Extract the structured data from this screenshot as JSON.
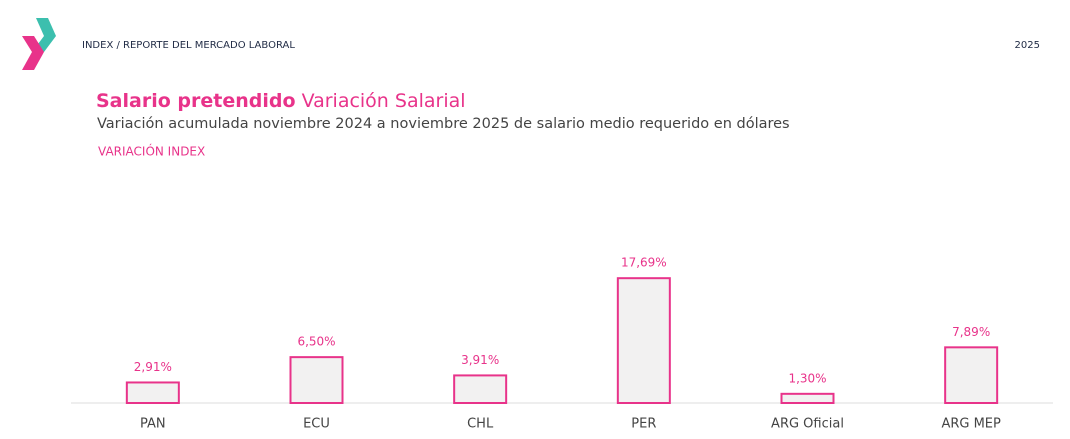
{
  "header": {
    "breadcrumb": "INDEX / REPORTE DEL MERCADO LABORAL",
    "year": "2025"
  },
  "chart_data": {
    "type": "bar",
    "title_bold": "Salario pretendido",
    "title": "Variación Salarial",
    "subtitle": "Variación acumulada noviembre 2024 a noviembre 2025 de salario medio requerido en dólares",
    "series_label": "VARIACIÓN INDEX",
    "categories": [
      "PAN",
      "ECU",
      "CHL",
      "PER",
      "ARG Oficial",
      "ARG MEP"
    ],
    "values": [
      2.91,
      6.5,
      3.91,
      17.69,
      1.3,
      7.89
    ],
    "value_labels": [
      "2,91%",
      "6,50%",
      "3,91%",
      "17,69%",
      "1,30%",
      "7,89%"
    ],
    "color": "#e8338a",
    "fill": "#f2f1f1",
    "ylim": [
      0,
      18
    ]
  }
}
